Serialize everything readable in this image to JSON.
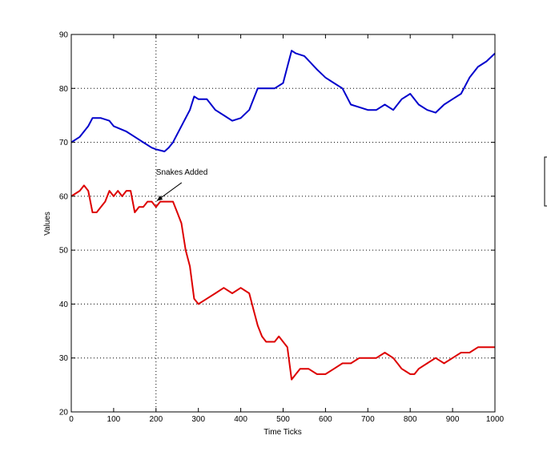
{
  "chart_data": {
    "type": "line",
    "title": "",
    "xlabel": "Time Ticks",
    "ylabel": "Values",
    "xlim": [
      0,
      1000
    ],
    "ylim": [
      20,
      90
    ],
    "x_ticks": [
      0,
      100,
      200,
      300,
      400,
      500,
      600,
      700,
      800,
      900,
      1000
    ],
    "y_ticks": [
      20,
      30,
      40,
      50,
      60,
      70,
      80,
      90
    ],
    "grid": "dotted horizontal gridlines at each y tick",
    "vertical_marker_x": 200,
    "annotation": {
      "text": "Snakes Added",
      "x": 200,
      "y": 59,
      "text_x": 200,
      "text_y": 64
    },
    "series": [
      {
        "color": "#0000cc",
        "x": [
          0,
          20,
          40,
          50,
          70,
          90,
          100,
          130,
          150,
          170,
          190,
          200,
          220,
          230,
          240,
          260,
          280,
          290,
          300,
          320,
          340,
          360,
          380,
          400,
          420,
          430,
          440,
          460,
          480,
          500,
          510,
          520,
          530,
          550,
          580,
          600,
          620,
          640,
          660,
          680,
          700,
          720,
          740,
          760,
          780,
          800,
          820,
          840,
          860,
          880,
          900,
          920,
          940,
          960,
          980,
          1000
        ],
        "values": [
          70,
          71,
          73,
          74.5,
          74.5,
          74,
          73,
          72,
          71,
          70,
          69,
          68.7,
          68.3,
          69,
          70,
          73,
          76,
          78.5,
          78,
          78,
          76,
          75,
          74,
          74.5,
          76,
          78,
          80,
          80,
          80,
          81,
          84,
          87,
          86.5,
          86,
          83.5,
          82,
          81,
          80,
          77,
          76.5,
          76,
          76,
          77,
          76,
          78,
          79,
          77,
          76,
          75.5,
          77,
          78,
          79,
          82,
          84,
          85,
          86.5
        ]
      },
      {
        "color": "#dd0000",
        "x": [
          0,
          20,
          30,
          40,
          50,
          60,
          70,
          80,
          90,
          100,
          110,
          120,
          130,
          140,
          150,
          160,
          170,
          180,
          190,
          200,
          210,
          220,
          230,
          240,
          250,
          260,
          270,
          280,
          290,
          300,
          320,
          340,
          360,
          380,
          400,
          420,
          430,
          440,
          450,
          460,
          470,
          480,
          490,
          500,
          510,
          520,
          530,
          540,
          560,
          580,
          600,
          620,
          640,
          660,
          680,
          700,
          720,
          740,
          760,
          770,
          780,
          790,
          800,
          810,
          820,
          840,
          860,
          880,
          900,
          920,
          940,
          960,
          980,
          1000
        ],
        "values": [
          60,
          61,
          62,
          61,
          57,
          57,
          58,
          59,
          61,
          60,
          61,
          60,
          61,
          61,
          57,
          58,
          58,
          59,
          59,
          58,
          59,
          59,
          59,
          59,
          57,
          55,
          50,
          47,
          41,
          40,
          41,
          42,
          43,
          42,
          43,
          42,
          39,
          36,
          34,
          33,
          33,
          33,
          34,
          33,
          32,
          26,
          27,
          28,
          28,
          27,
          27,
          28,
          29,
          29,
          30,
          30,
          30,
          31,
          30,
          29,
          28,
          27.5,
          27,
          27,
          28,
          29,
          30,
          29,
          30,
          31,
          31,
          32,
          32,
          32
        ]
      }
    ]
  }
}
